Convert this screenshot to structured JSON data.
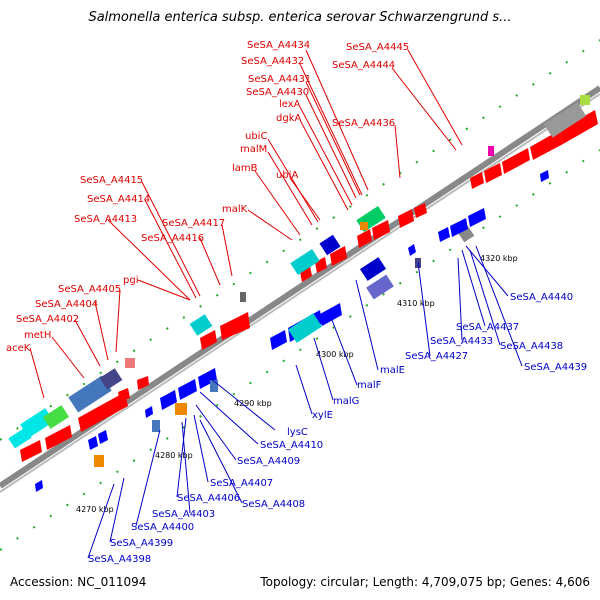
{
  "title": "Salmonella enterica subsp. enterica serovar Schwarzengrund s...",
  "footer": {
    "accession": "Accession: NC_011094",
    "info": "Topology: circular; Length: 4,709,075 bp; Genes: 4,606"
  },
  "ticks": [
    "4270 kbp",
    "4280 kbp",
    "4290 kbp",
    "4300 kbp",
    "4310 kbp",
    "4320 kbp"
  ],
  "labels_forward": [
    "SeSA_A4434",
    "SeSA_A4445",
    "SeSA_A4432",
    "SeSA_A4444",
    "SeSA_A4431",
    "SeSA_A4430",
    "lexA",
    "dgkA",
    "SeSA_A4436",
    "ubiC",
    "malM",
    "lamB",
    "ubiA",
    "SeSA_A4415",
    "SeSA_A4414",
    "SeSA_A4413",
    "SeSA_A4417",
    "SeSA_A4416",
    "malK",
    "pgi",
    "SeSA_A4405",
    "SeSA_A4404",
    "SeSA_A4402",
    "metH",
    "aceK"
  ],
  "labels_reverse": [
    "SeSA_A4440",
    "SeSA_A4437",
    "SeSA_A4433",
    "SeSA_A4438",
    "SeSA_A4427",
    "SeSA_A4439",
    "malE",
    "malF",
    "malG",
    "xylE",
    "lysC",
    "SeSA_A4410",
    "SeSA_A4409",
    "SeSA_A4407",
    "SeSA_A4406",
    "SeSA_A4408",
    "SeSA_A4403",
    "SeSA_A4400",
    "SeSA_A4399",
    "SeSA_A4398"
  ],
  "colors": {
    "forward": "#ff0000",
    "reverse": "#0000ff",
    "backbone": "#888888"
  }
}
